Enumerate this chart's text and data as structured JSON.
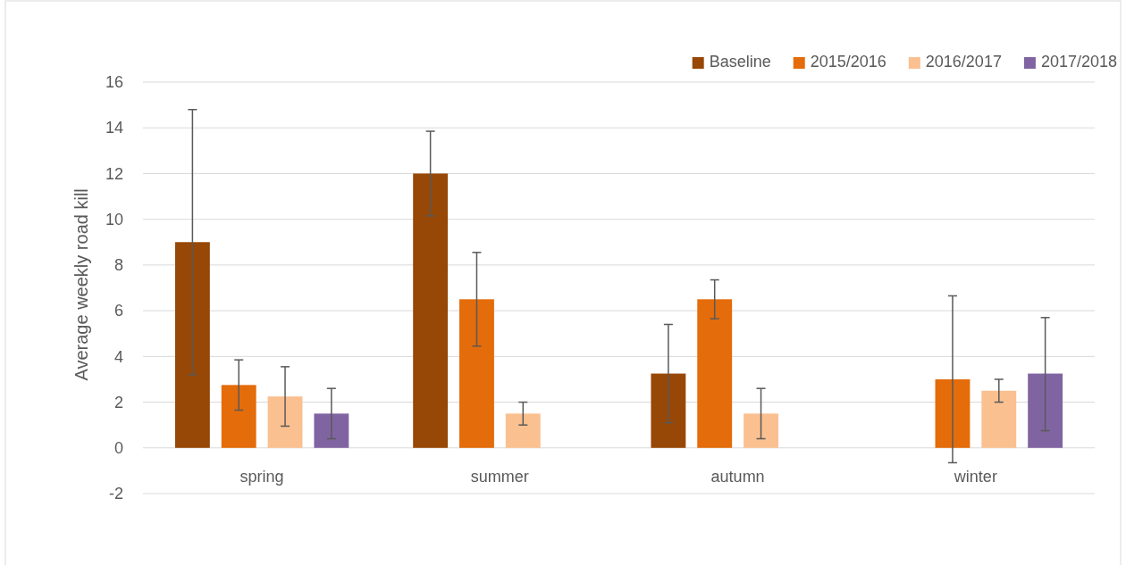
{
  "chart_data": {
    "type": "bar",
    "ylabel": "Average weekly road kill",
    "categories": [
      "spring",
      "summer",
      "autumn",
      "winter"
    ],
    "series": [
      {
        "name": "Baseline",
        "color": "#974706",
        "values": [
          9,
          12,
          3.25,
          null
        ],
        "errors": [
          [
            3.2,
            14.8
          ],
          [
            10.15,
            13.85
          ],
          [
            1.1,
            5.4
          ],
          null
        ]
      },
      {
        "name": "2015/2016",
        "color": "#e46c0a",
        "values": [
          2.75,
          6.5,
          6.5,
          3
        ],
        "errors": [
          [
            1.65,
            3.85
          ],
          [
            4.45,
            8.55
          ],
          [
            5.65,
            7.35
          ],
          [
            -0.65,
            6.65
          ]
        ]
      },
      {
        "name": "2016/2017",
        "color": "#fac090",
        "values": [
          2.25,
          1.5,
          1.5,
          2.5
        ],
        "errors": [
          [
            0.95,
            3.55
          ],
          [
            1.0,
            2.0
          ],
          [
            0.4,
            2.6
          ],
          [
            2.0,
            3.0
          ]
        ]
      },
      {
        "name": "2017/2018",
        "color": "#8064a2",
        "values": [
          1.5,
          null,
          null,
          3.25
        ],
        "errors": [
          [
            0.4,
            2.6
          ],
          null,
          null,
          [
            0.75,
            5.7
          ]
        ]
      }
    ],
    "ylim": [
      -2,
      16
    ],
    "yticks": [
      -2,
      0,
      2,
      4,
      6,
      8,
      10,
      12,
      14,
      16
    ],
    "grid": "y",
    "legend": "top right"
  }
}
